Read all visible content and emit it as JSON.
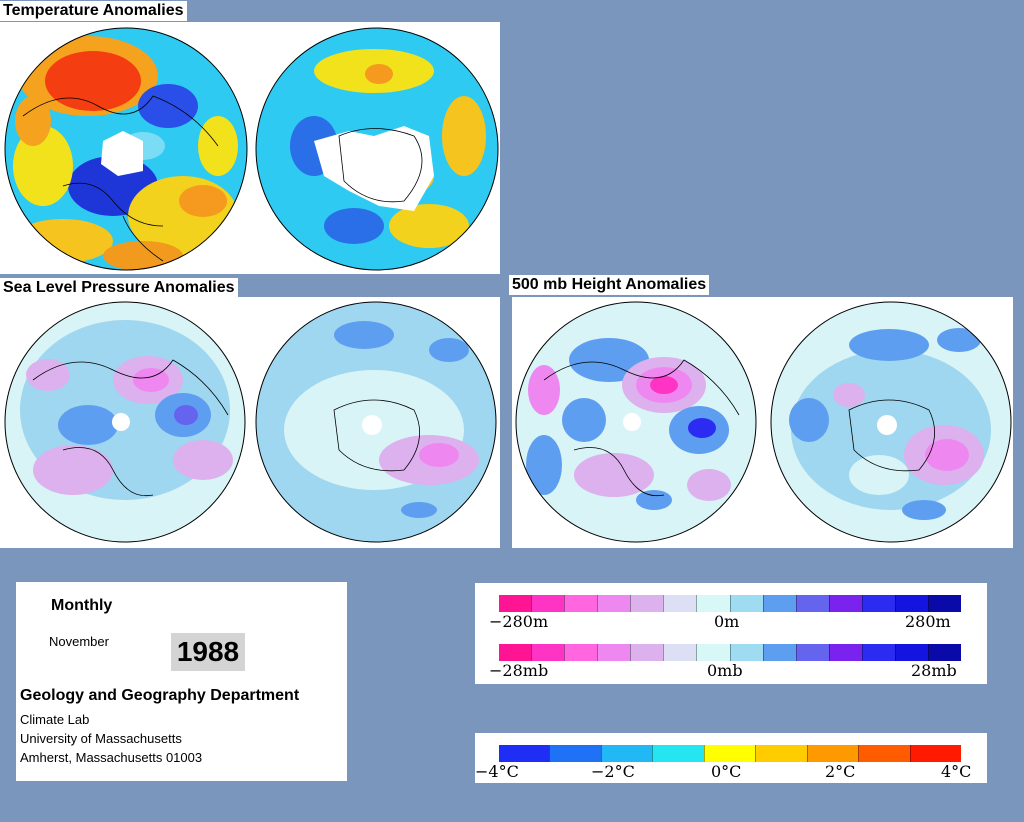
{
  "titles": {
    "temperature": "Temperature Anomalies",
    "slp": "Sea Level Pressure Anomalies",
    "height": "500 mb Height Anomalies"
  },
  "info": {
    "period": "Monthly",
    "month": "November",
    "year": "1988",
    "department": "Geology and Geography Department",
    "lab": "Climate Lab",
    "university": "University of Massachusetts",
    "address": "Amherst, Massachusetts 01003"
  },
  "scales": {
    "height": {
      "min": "−280m",
      "mid": "0m",
      "max": "280m"
    },
    "pressure": {
      "min": "−28mb",
      "mid": "0mb",
      "max": "28mb"
    },
    "temperature": {
      "labels": [
        "−4°C",
        "−2°C",
        "0°C",
        "2°C",
        "4°C"
      ]
    }
  },
  "colors": {
    "background": "#7b96bd",
    "contour_ramp": [
      "#ff1493",
      "#ff33c4",
      "#ff66e0",
      "#ee88f0",
      "#ddb0ee",
      "#dde0f5",
      "#d8f8f8",
      "#9fdcf2",
      "#5e9ef0",
      "#6464ee",
      "#7a22ee",
      "#2b2bf2",
      "#1414e0",
      "#0a0aa8"
    ],
    "temperature_ramp": [
      "#1e2ef5",
      "#1f72f5",
      "#22b8f5",
      "#25e5f0",
      "#ffff00",
      "#ffcc00",
      "#ff9900",
      "#ff5c00",
      "#ff1a00"
    ]
  }
}
